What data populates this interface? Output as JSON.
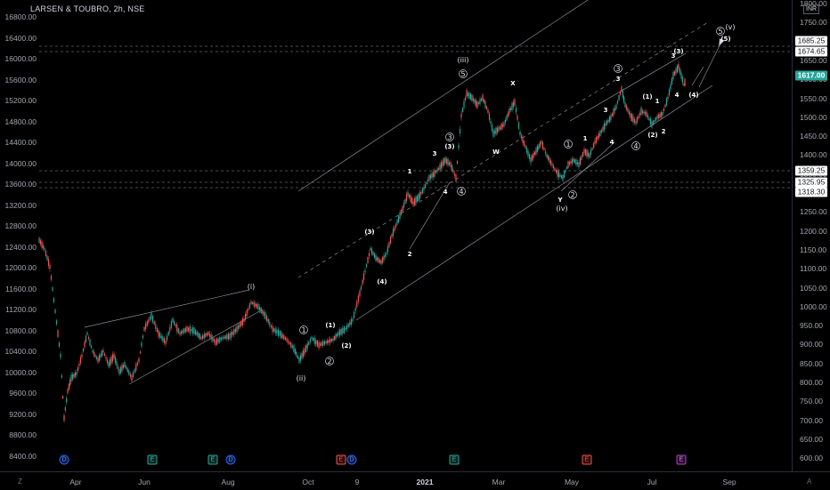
{
  "title": "LARSEN & TOUBRO, 2h, NSE",
  "currency": "INR",
  "left_axis": [
    "16800.00",
    "16400.00",
    "16000.00",
    "15600.00",
    "15200.00",
    "14800.00",
    "14400.00",
    "14000.00",
    "13600.00",
    "13200.00",
    "12800.00",
    "12400.00",
    "12000.00",
    "11600.00",
    "11200.00",
    "10800.00",
    "10400.00",
    "10000.00",
    "9600.00",
    "9200.00",
    "8800.00",
    "8400.00"
  ],
  "right_axis": [
    "1800.00",
    "1750.00",
    "1700.00",
    "1650.00",
    "1600.00",
    "1550.00",
    "1500.00",
    "1450.00",
    "1400.00",
    "1350.00",
    "1300.00",
    "1250.00",
    "1200.00",
    "1150.00",
    "1100.00",
    "1050.00",
    "1000.00",
    "950.00",
    "900.00",
    "850.00",
    "800.00",
    "750.00",
    "700.00",
    "650.00",
    "600.00"
  ],
  "price_labels": [
    "1685.25",
    "1674.65",
    "1359.25",
    "1325.95",
    "1318.30"
  ],
  "current_price": "1617.00",
  "time_axis": [
    "Apr",
    "Jun",
    "Aug",
    "Oct",
    "9",
    "2021",
    "Mar",
    "May",
    "Jul",
    "Sep"
  ],
  "timezone_icon": "Z",
  "auto_scale_icon": "A",
  "events": [
    "D",
    "E",
    "E",
    "D",
    "E",
    "D",
    "E",
    "E",
    "E"
  ],
  "wave_labels_circled": [
    "1",
    "2",
    "1",
    "2",
    "3",
    "4",
    "5",
    "3",
    "4",
    "5",
    "1",
    "2",
    "3",
    "4",
    "3",
    "5"
  ],
  "wave_labels_paren": [
    "(i)",
    "(ii)",
    "(iii)",
    "(iv)",
    "(v)"
  ],
  "wave_labels_plain": [
    "(1)",
    "(2)",
    "(3)",
    "(4)",
    "1",
    "2",
    "3",
    "4",
    "(3)",
    "X",
    "W",
    "Y",
    "1",
    "3",
    "3",
    "5",
    "4",
    "(1)",
    "1",
    "(2)",
    "2",
    "(3)",
    "3",
    "4",
    "(4)",
    "(5)"
  ],
  "colors": {
    "up": "#26a69a",
    "down": "#ef5350",
    "background": "#000000"
  }
}
